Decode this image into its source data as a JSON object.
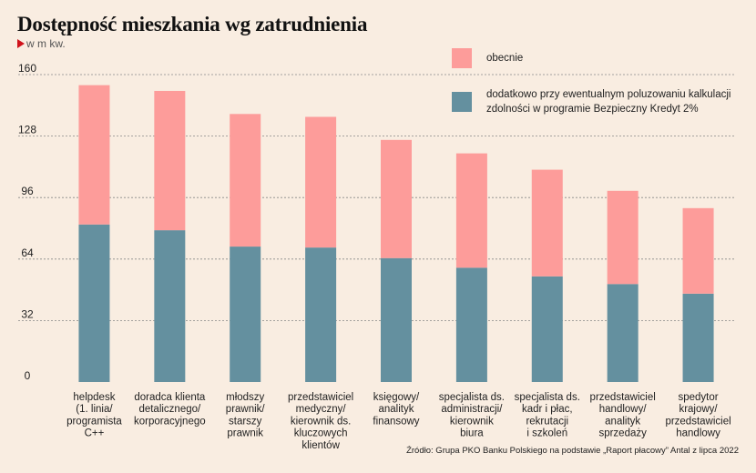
{
  "header": {
    "title": "Dostępność mieszkania wg zatrudnienia",
    "unit": "w m kw."
  },
  "source": "Źródło: Grupa PKO Banku Polskiego na podstawie „Raport płacowy” Antal z lipca 2022",
  "colors": {
    "base": "#64909f",
    "additional": "#fd9c9a",
    "grid": "#888888",
    "background": "#f9ede1"
  },
  "chart_data": {
    "type": "bar",
    "stacked": true,
    "title": "Dostępność mieszkania wg zatrudnienia",
    "ylabel": "w m kw.",
    "ylim": [
      0,
      160
    ],
    "yticks": [
      "0",
      "32",
      "64",
      "96",
      "128",
      "160"
    ],
    "grid": true,
    "legend_position": "top-right",
    "categories": [
      [
        "helpdesk",
        "(1. linia/",
        "programista",
        "C++"
      ],
      [
        "doradca klienta",
        "detalicznego/",
        "korporacyjnego"
      ],
      [
        "młodszy",
        "prawnik/",
        "starszy",
        "prawnik"
      ],
      [
        "przedstawiciel",
        "medyczny/",
        "kierownik ds.",
        "kluczowych",
        "klientów"
      ],
      [
        "księgowy/",
        "analityk",
        "finansowy"
      ],
      [
        "specjalista ds.",
        "administracji/",
        "kierownik",
        "biura"
      ],
      [
        "specjalista ds.",
        "kadr i płac,",
        "rekrutacji",
        "i szkoleń"
      ],
      [
        "przedstawiciel",
        "handlowy/",
        "analityk",
        "sprzedaży"
      ],
      [
        "spedytor",
        "krajowy/",
        "przedstawiciel",
        "handlowy"
      ]
    ],
    "series": [
      {
        "name": "dodatkowo przy ewentualnym poluzowaniu kalkulacji zdolności w programie Bezpieczny Kredyt 2%",
        "values": [
          82,
          79,
          70.5,
          70,
          64.5,
          59.5,
          55,
          51,
          46
        ]
      },
      {
        "name": "obecnie",
        "values": [
          72.5,
          72.5,
          69,
          68,
          61.5,
          59.5,
          55.5,
          48.5,
          44.5
        ]
      }
    ]
  },
  "legend": [
    {
      "label": "obecnie",
      "color": "#fd9c9a"
    },
    {
      "label": "dodatkowo przy ewentualnym poluzowaniu kalkulacji zdolności w programie Bezpieczny Kredyt 2%",
      "color": "#64909f"
    }
  ]
}
